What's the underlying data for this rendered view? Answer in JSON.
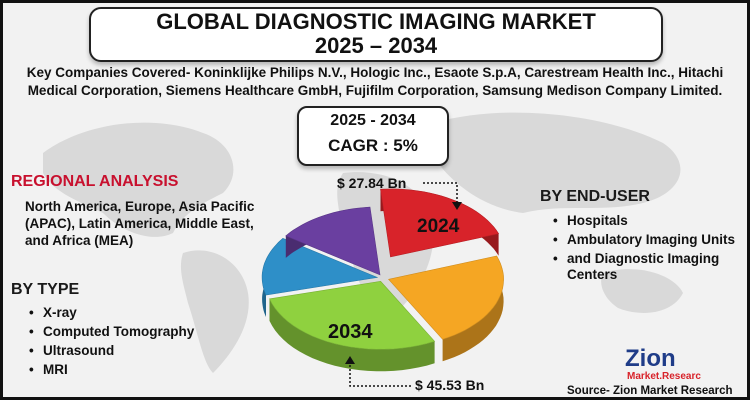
{
  "title": {
    "line1": "GLOBAL DIAGNOSTIC IMAGING MARKET",
    "line2": "2025 – 2034"
  },
  "companies_text": "Key Companies Covered- Koninklijke Philips N.V., Hologic Inc., Esaote S.p.A, Carestream Health Inc., Hitachi Medical Corporation, Siemens Healthcare GmbH, Fujifilm Corporation, Samsung Medison Company Limited.",
  "cagr_box": {
    "years": "2025 - 2034",
    "cagr": "CAGR : 5%"
  },
  "regional": {
    "heading": "REGIONAL ANALYSIS",
    "text": "North America, Europe, Asia Pacific (APAC), Latin America, Middle East, and Africa (MEA)"
  },
  "by_type": {
    "heading": "BY TYPE",
    "items": [
      "X-ray",
      "Computed Tomography",
      "Ultrasound",
      "MRI"
    ]
  },
  "by_end_user": {
    "heading": "BY END-USER",
    "items": [
      "Hospitals",
      "Ambulatory Imaging Units",
      "and Diagnostic Imaging Centers"
    ]
  },
  "source": "Source- Zion Market Research",
  "logo": {
    "name": "Zion",
    "sub": "Market.Research"
  },
  "colors": {
    "red": "#d8232a",
    "orange": "#f5a623",
    "green": "#8fd13f",
    "blue": "#2e8fc8",
    "purple": "#6a3fa0",
    "accent": "#c8102e"
  },
  "chart_data": {
    "type": "pie",
    "style": "3d-exploded",
    "years": [
      "2024",
      "2034"
    ],
    "values": [
      27.84,
      45.53
    ],
    "value_labels": [
      "$ 27.84 Bn",
      "$ 45.53 Bn"
    ],
    "cagr_percent": 5,
    "forecast_period": "2025 - 2034",
    "slice_colors": [
      "#d8232a",
      "#f5a623",
      "#8fd13f",
      "#2e8fc8",
      "#6a3fa0"
    ]
  }
}
